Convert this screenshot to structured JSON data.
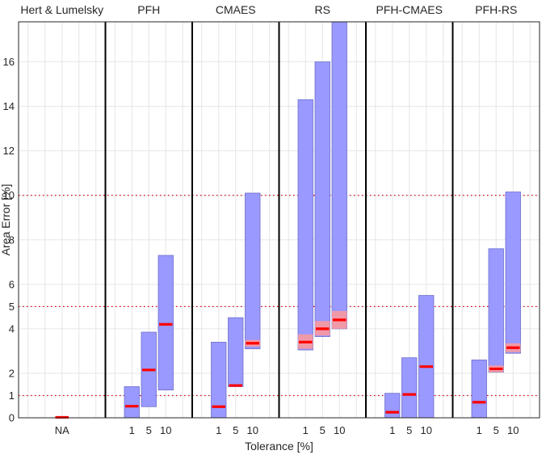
{
  "chart_data": {
    "type": "bar",
    "ylabel": "Area Error [%]",
    "xlabel": "Tolerance [%]",
    "ylim": [
      0,
      17.8
    ],
    "yticks": [
      0,
      1,
      2,
      4,
      5,
      6,
      8,
      10,
      12,
      14,
      16
    ],
    "reference_lines": [
      1,
      5,
      10
    ],
    "grid": true,
    "colors": {
      "box": "#9999ff",
      "box_edge": "#6e6ecc",
      "median": "#ff0000",
      "median_band": "#ff9999",
      "reference": "#d9001b",
      "separator": "#000000"
    },
    "groups": [
      {
        "name": "Hert & Lumelsky",
        "bars": [
          {
            "tick": "NA",
            "low": 0,
            "high": 0,
            "median": 0.02,
            "band_low": 0.02,
            "band_high": 0.02
          }
        ]
      },
      {
        "name": "PFH",
        "bars": [
          {
            "tick": "1",
            "low": 0,
            "high": 1.4,
            "median": 0.52,
            "band_low": 0.52,
            "band_high": 0.52
          },
          {
            "tick": "5",
            "low": 0.5,
            "high": 3.85,
            "median": 2.15,
            "band_low": 2.15,
            "band_high": 2.15
          },
          {
            "tick": "10",
            "low": 1.25,
            "high": 7.3,
            "median": 4.2,
            "band_low": 4.2,
            "band_high": 4.2
          }
        ]
      },
      {
        "name": "CMAES",
        "bars": [
          {
            "tick": "1",
            "low": 0,
            "high": 3.4,
            "median": 0.5,
            "band_low": 0.5,
            "band_high": 0.5
          },
          {
            "tick": "5",
            "low": 1.4,
            "high": 4.5,
            "median": 1.45,
            "band_low": 1.45,
            "band_high": 1.45
          },
          {
            "tick": "10",
            "low": 3.1,
            "high": 10.1,
            "median": 3.35,
            "band_low": 3.2,
            "band_high": 3.5
          }
        ]
      },
      {
        "name": "RS",
        "bars": [
          {
            "tick": "1",
            "low": 3.05,
            "high": 14.3,
            "median": 3.4,
            "band_low": 3.1,
            "band_high": 3.75
          },
          {
            "tick": "5",
            "low": 3.65,
            "high": 16.0,
            "median": 4.0,
            "band_low": 3.7,
            "band_high": 4.35
          },
          {
            "tick": "10",
            "low": 4.0,
            "high": 17.8,
            "median": 4.4,
            "band_low": 4.0,
            "band_high": 4.8
          }
        ]
      },
      {
        "name": "PFH-CMAES",
        "bars": [
          {
            "tick": "1",
            "low": 0,
            "high": 1.1,
            "median": 0.25,
            "band_low": 0.25,
            "band_high": 0.25
          },
          {
            "tick": "5",
            "low": 0,
            "high": 2.7,
            "median": 1.05,
            "band_low": 1.05,
            "band_high": 1.05
          },
          {
            "tick": "10",
            "low": 0,
            "high": 5.5,
            "median": 2.3,
            "band_low": 2.3,
            "band_high": 2.3
          }
        ]
      },
      {
        "name": "PFH-RS",
        "bars": [
          {
            "tick": "1",
            "low": 0,
            "high": 2.6,
            "median": 0.7,
            "band_low": 0.7,
            "band_high": 0.7
          },
          {
            "tick": "5",
            "low": 2.05,
            "high": 7.6,
            "median": 2.2,
            "band_low": 2.05,
            "band_high": 2.35
          },
          {
            "tick": "10",
            "low": 2.9,
            "high": 10.15,
            "median": 3.15,
            "band_low": 2.95,
            "band_high": 3.35
          }
        ]
      }
    ]
  }
}
